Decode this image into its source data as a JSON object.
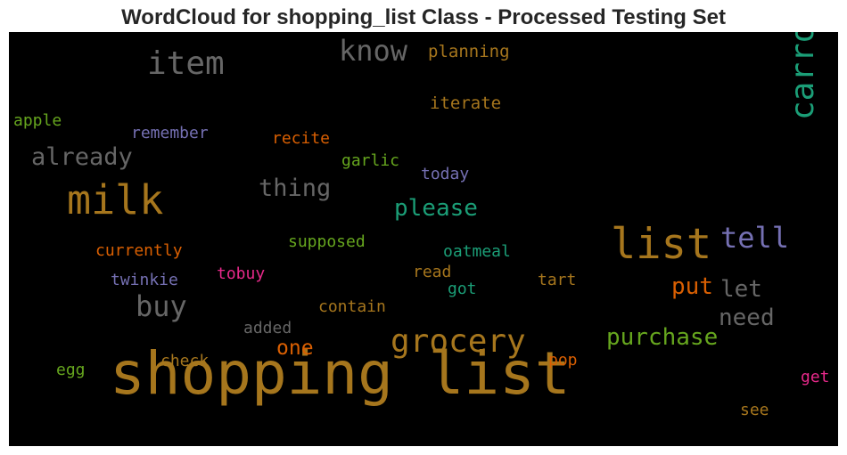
{
  "chart_data": {
    "type": "wordcloud",
    "title": "WordCloud for shopping_list Class - Processed Testing Set",
    "background": "#000000",
    "words": [
      {
        "text": "shopping list",
        "color": "#a6761d",
        "orientation": "horizontal"
      },
      {
        "text": "list",
        "color": "#a6761d",
        "orientation": "horizontal"
      },
      {
        "text": "milk",
        "color": "#a6761d",
        "orientation": "horizontal"
      },
      {
        "text": "grocery",
        "color": "#a6761d",
        "orientation": "horizontal"
      },
      {
        "text": "item",
        "color": "#666666",
        "orientation": "horizontal"
      },
      {
        "text": "buy",
        "color": "#666666",
        "orientation": "horizontal"
      },
      {
        "text": "carrot",
        "color": "#1b9e77",
        "orientation": "vertical"
      },
      {
        "text": "know",
        "color": "#666666",
        "orientation": "horizontal"
      },
      {
        "text": "tell",
        "color": "#7570b3",
        "orientation": "horizontal"
      },
      {
        "text": "already",
        "color": "#666666",
        "orientation": "horizontal"
      },
      {
        "text": "thing",
        "color": "#666666",
        "orientation": "horizontal"
      },
      {
        "text": "please",
        "color": "#1b9e77",
        "orientation": "horizontal"
      },
      {
        "text": "purchase",
        "color": "#66a61e",
        "orientation": "horizontal"
      },
      {
        "text": "put",
        "color": "#d95f02",
        "orientation": "horizontal"
      },
      {
        "text": "let",
        "color": "#666666",
        "orientation": "horizontal"
      },
      {
        "text": "need",
        "color": "#666666",
        "orientation": "horizontal"
      },
      {
        "text": "one",
        "color": "#d95f02",
        "orientation": "horizontal"
      },
      {
        "text": "planning",
        "color": "#a6761d",
        "orientation": "horizontal"
      },
      {
        "text": "iterate",
        "color": "#a6761d",
        "orientation": "horizontal"
      },
      {
        "text": "apple",
        "color": "#66a61e",
        "orientation": "horizontal"
      },
      {
        "text": "remember",
        "color": "#7570b3",
        "orientation": "horizontal"
      },
      {
        "text": "recite",
        "color": "#d95f02",
        "orientation": "horizontal"
      },
      {
        "text": "garlic",
        "color": "#66a61e",
        "orientation": "horizontal"
      },
      {
        "text": "today",
        "color": "#7570b3",
        "orientation": "horizontal"
      },
      {
        "text": "supposed",
        "color": "#66a61e",
        "orientation": "horizontal"
      },
      {
        "text": "oatmeal",
        "color": "#1b9e77",
        "orientation": "horizontal"
      },
      {
        "text": "currently",
        "color": "#d95f02",
        "orientation": "horizontal"
      },
      {
        "text": "tobuy",
        "color": "#e7298a",
        "orientation": "horizontal"
      },
      {
        "text": "read",
        "color": "#a6761d",
        "orientation": "horizontal"
      },
      {
        "text": "tart",
        "color": "#a6761d",
        "orientation": "horizontal"
      },
      {
        "text": "twinkie",
        "color": "#7570b3",
        "orientation": "horizontal"
      },
      {
        "text": "got",
        "color": "#1b9e77",
        "orientation": "horizontal"
      },
      {
        "text": "contain",
        "color": "#a6761d",
        "orientation": "horizontal"
      },
      {
        "text": "added",
        "color": "#666666",
        "orientation": "horizontal"
      },
      {
        "text": "check",
        "color": "#a6761d",
        "orientation": "horizontal"
      },
      {
        "text": "pop",
        "color": "#d95f02",
        "orientation": "horizontal"
      },
      {
        "text": "egg",
        "color": "#66a61e",
        "orientation": "horizontal"
      },
      {
        "text": "get",
        "color": "#e7298a",
        "orientation": "horizontal"
      },
      {
        "text": "see",
        "color": "#a6761d",
        "orientation": "horizontal"
      }
    ]
  }
}
